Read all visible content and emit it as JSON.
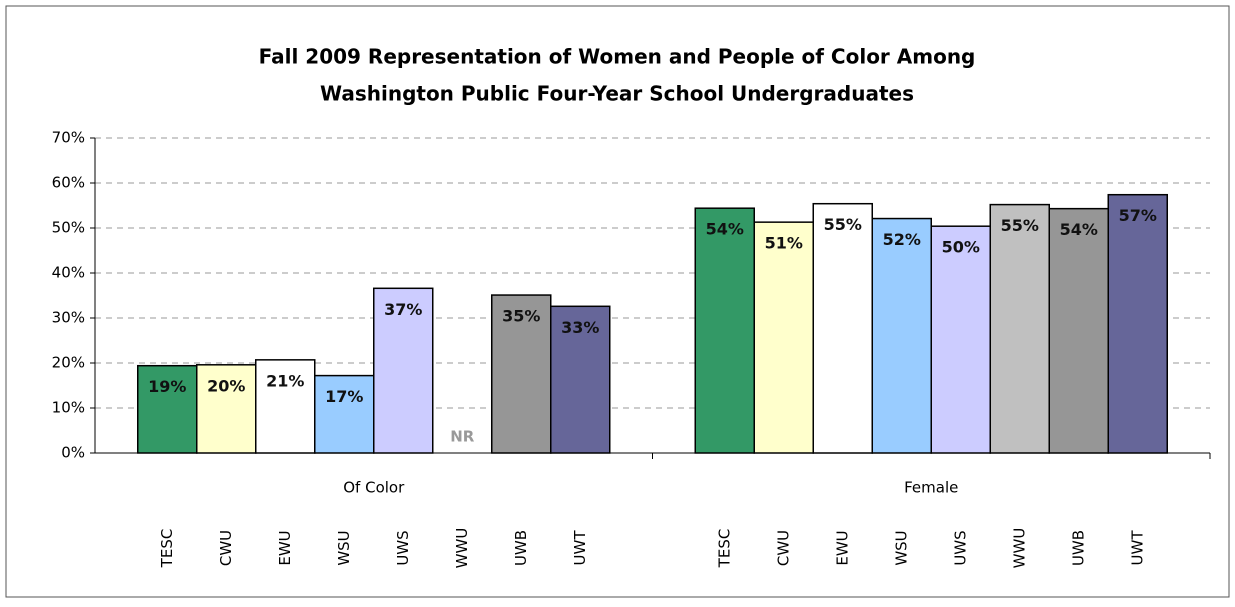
{
  "chart_data": {
    "type": "bar",
    "title": [
      "Fall 2009 Representation of Women and People of Color Among",
      "Washington Public Four-Year School Undergraduates"
    ],
    "categories": [
      "Of Color",
      "Female"
    ],
    "series": [
      {
        "name": "TESC",
        "color": "#339966",
        "values": [
          19.4,
          54.4
        ],
        "value_labels": [
          "19%",
          "54%"
        ]
      },
      {
        "name": "CWU",
        "color": "#ffffcc",
        "values": [
          19.6,
          51.3
        ],
        "value_labels": [
          "20%",
          "51%"
        ]
      },
      {
        "name": "EWU",
        "color": "#ffffff",
        "values": [
          20.7,
          55.4
        ],
        "value_labels": [
          "21%",
          "55%"
        ]
      },
      {
        "name": "WSU",
        "color": "#99ccff",
        "values": [
          17.2,
          52.1
        ],
        "value_labels": [
          "17%",
          "52%"
        ]
      },
      {
        "name": "UWS",
        "color": "#ccccff",
        "values": [
          36.6,
          50.4
        ],
        "value_labels": [
          "37%",
          "50%"
        ]
      },
      {
        "name": "WWU",
        "color": "#c0c0c0",
        "values": [
          null,
          55.2
        ],
        "value_labels": [
          "NR",
          "55%"
        ]
      },
      {
        "name": "UWB",
        "color": "#969696",
        "values": [
          35.1,
          54.3
        ],
        "value_labels": [
          "35%",
          "54%"
        ]
      },
      {
        "name": "UWT",
        "color": "#666699",
        "values": [
          32.6,
          57.4
        ],
        "value_labels": [
          "33%",
          "57%"
        ]
      }
    ],
    "ylim": [
      0,
      70
    ],
    "yticks": [
      {
        "value": 0,
        "label": "0%"
      },
      {
        "value": 10,
        "label": "10%"
      },
      {
        "value": 20,
        "label": "20%"
      },
      {
        "value": 30,
        "label": "30%"
      },
      {
        "value": 40,
        "label": "40%"
      },
      {
        "value": 50,
        "label": "50%"
      },
      {
        "value": 60,
        "label": "60%"
      },
      {
        "value": 70,
        "label": "70%"
      }
    ],
    "grid": true
  }
}
